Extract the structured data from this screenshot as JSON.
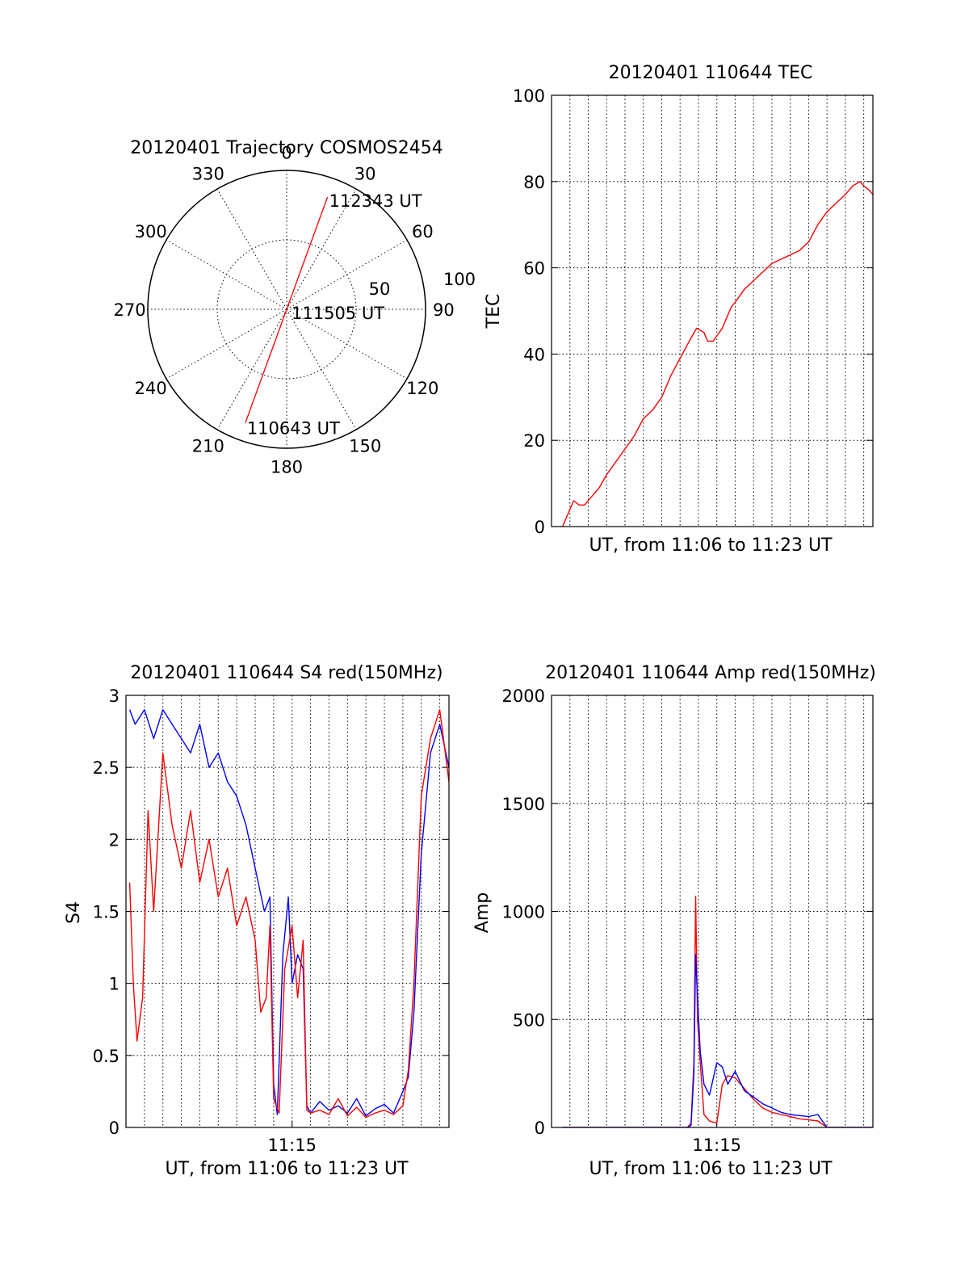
{
  "colors": {
    "red": "#ff0000",
    "blue": "#0000ff",
    "black": "#000000"
  },
  "chart_data": [
    {
      "id": "trajectory",
      "type": "polar",
      "title": "20120401 Trajectory COSMOS2454",
      "angle_labels": [
        "0",
        "30",
        "60",
        "90",
        "120",
        "150",
        "180",
        "210",
        "240",
        "270",
        "300",
        "330"
      ],
      "radial_labels": [
        "50",
        "100"
      ],
      "rlim": [
        0,
        100
      ],
      "track": {
        "color": "red",
        "start": {
          "azimuth": 200,
          "zenith": 87,
          "label": "110643 UT"
        },
        "mid": {
          "azimuth": 0,
          "zenith": 0,
          "label": "111505 UT"
        },
        "end": {
          "azimuth": 20,
          "zenith": 86,
          "label": "112343 UT"
        }
      }
    },
    {
      "id": "tec",
      "type": "line",
      "title": "20120401 110644 TEC",
      "xlabel": "UT, from 11:06 to 11:23 UT",
      "ylabel": "TEC",
      "xlim_min": [
        0,
        17.5
      ],
      "ylim": [
        0,
        100
      ],
      "yticks": [
        "0",
        "20",
        "40",
        "60",
        "80",
        "100"
      ],
      "xticks": [],
      "series": [
        {
          "color": "red",
          "x": [
            0.6,
            0.9,
            1.2,
            1.5,
            1.8,
            2.2,
            2.6,
            3.0,
            3.5,
            4.0,
            4.5,
            5.0,
            5.5,
            6.0,
            6.5,
            7.0,
            7.5,
            7.9,
            8.3,
            8.5,
            8.8,
            9.3,
            9.6,
            9.8,
            10.0,
            10.5,
            11.0,
            11.5,
            12.0,
            12.5,
            13.0,
            13.5,
            14.0,
            14.5,
            15.0,
            15.5,
            16.0,
            16.4,
            16.8,
            17.0,
            17.3,
            17.5
          ],
          "y": [
            0,
            3,
            6,
            5,
            5,
            7,
            9,
            12,
            15,
            18,
            21,
            25,
            27,
            30,
            35,
            39,
            43,
            46,
            45,
            43,
            43,
            46,
            49,
            51,
            52,
            55,
            57,
            59,
            61,
            62,
            63,
            64,
            66,
            70,
            73,
            75,
            77,
            79,
            80,
            79,
            78,
            77
          ]
        }
      ]
    },
    {
      "id": "s4",
      "type": "line",
      "title": "20120401 110644 S4 red(150MHz)",
      "xlabel": "UT, from 11:06 to 11:23 UT",
      "ylabel": "S4",
      "xlim_min": [
        0,
        17.5
      ],
      "ylim": [
        0,
        3
      ],
      "yticks": [
        "0",
        "0.5",
        "1",
        "1.5",
        "2",
        "2.5",
        "3"
      ],
      "xticks": [
        {
          "value": 9.0,
          "label": "11:15"
        }
      ],
      "series": [
        {
          "color": "blue",
          "x": [
            0.2,
            0.5,
            1.0,
            1.5,
            2.0,
            2.5,
            3.0,
            3.5,
            4.0,
            4.5,
            5.0,
            5.5,
            6.0,
            6.5,
            7.0,
            7.5,
            7.8,
            8.0,
            8.2,
            8.5,
            8.8,
            9.0,
            9.3,
            9.6,
            9.8,
            10.0,
            10.5,
            11.0,
            11.5,
            12.0,
            12.5,
            13.0,
            13.5,
            14.0,
            14.5,
            15.0,
            15.3,
            15.6,
            16.0,
            16.5,
            17.0,
            17.5
          ],
          "y": [
            2.9,
            2.8,
            2.9,
            2.7,
            2.9,
            2.8,
            2.7,
            2.6,
            2.8,
            2.5,
            2.6,
            2.4,
            2.3,
            2.1,
            1.8,
            1.5,
            1.6,
            0.3,
            0.09,
            1.2,
            1.6,
            1.0,
            1.2,
            1.1,
            0.15,
            0.1,
            0.18,
            0.12,
            0.15,
            0.1,
            0.2,
            0.08,
            0.13,
            0.16,
            0.1,
            0.25,
            0.35,
            0.8,
            1.9,
            2.6,
            2.8,
            2.5
          ]
        },
        {
          "color": "red",
          "x": [
            0.2,
            0.4,
            0.6,
            0.9,
            1.2,
            1.5,
            2.0,
            2.5,
            3.0,
            3.5,
            4.0,
            4.5,
            5.0,
            5.5,
            6.0,
            6.5,
            7.0,
            7.3,
            7.6,
            7.8,
            8.0,
            8.3,
            8.6,
            9.0,
            9.3,
            9.6,
            9.8,
            10.0,
            10.5,
            11.0,
            11.5,
            12.0,
            12.5,
            13.0,
            13.5,
            14.0,
            14.5,
            15.0,
            15.3,
            15.6,
            16.0,
            16.5,
            17.0,
            17.5
          ],
          "y": [
            1.7,
            1.0,
            0.6,
            0.9,
            2.2,
            1.5,
            2.6,
            2.1,
            1.8,
            2.2,
            1.7,
            2.0,
            1.6,
            1.8,
            1.4,
            1.6,
            1.3,
            0.8,
            0.9,
            1.4,
            0.2,
            0.1,
            1.1,
            1.4,
            0.9,
            1.3,
            0.12,
            0.1,
            0.12,
            0.09,
            0.2,
            0.08,
            0.14,
            0.07,
            0.1,
            0.12,
            0.09,
            0.15,
            0.4,
            1.0,
            2.3,
            2.7,
            2.9,
            2.4
          ]
        }
      ]
    },
    {
      "id": "amp",
      "type": "line",
      "title": "20120401 110644 Amp red(150MHz)",
      "xlabel": "UT, from 11:06 to 11:23 UT",
      "ylabel": "Amp",
      "xlim_min": [
        0,
        17.5
      ],
      "ylim": [
        0,
        2000
      ],
      "yticks": [
        "0",
        "500",
        "1000",
        "1500",
        "2000"
      ],
      "xticks": [
        {
          "value": 9.0,
          "label": "11:15"
        }
      ],
      "series": [
        {
          "color": "red",
          "x": [
            0.6,
            7.4,
            7.6,
            7.75,
            7.85,
            7.95,
            8.1,
            8.3,
            8.6,
            9.0,
            9.3,
            9.6,
            10.0,
            10.5,
            11.0,
            11.5,
            12.0,
            12.5,
            13.0,
            13.5,
            14.0,
            14.5,
            15.0,
            15.5,
            16.0,
            16.5,
            17.0,
            17.5
          ],
          "y": [
            0,
            0,
            20,
            300,
            1070,
            500,
            300,
            60,
            30,
            20,
            200,
            240,
            230,
            180,
            130,
            90,
            70,
            60,
            50,
            40,
            35,
            30,
            0,
            0,
            0,
            0,
            0,
            0
          ]
        },
        {
          "color": "blue",
          "x": [
            0.6,
            7.4,
            7.6,
            7.75,
            7.85,
            7.95,
            8.1,
            8.3,
            8.6,
            9.0,
            9.3,
            9.6,
            10.0,
            10.5,
            11.0,
            11.5,
            12.0,
            12.5,
            13.0,
            13.5,
            14.0,
            14.5,
            15.0,
            15.5,
            16.0,
            16.5,
            17.0,
            17.5
          ],
          "y": [
            0,
            0,
            10,
            250,
            800,
            600,
            350,
            200,
            150,
            300,
            280,
            200,
            260,
            170,
            140,
            110,
            90,
            70,
            60,
            55,
            50,
            60,
            0,
            0,
            0,
            0,
            0,
            0
          ]
        }
      ]
    }
  ]
}
